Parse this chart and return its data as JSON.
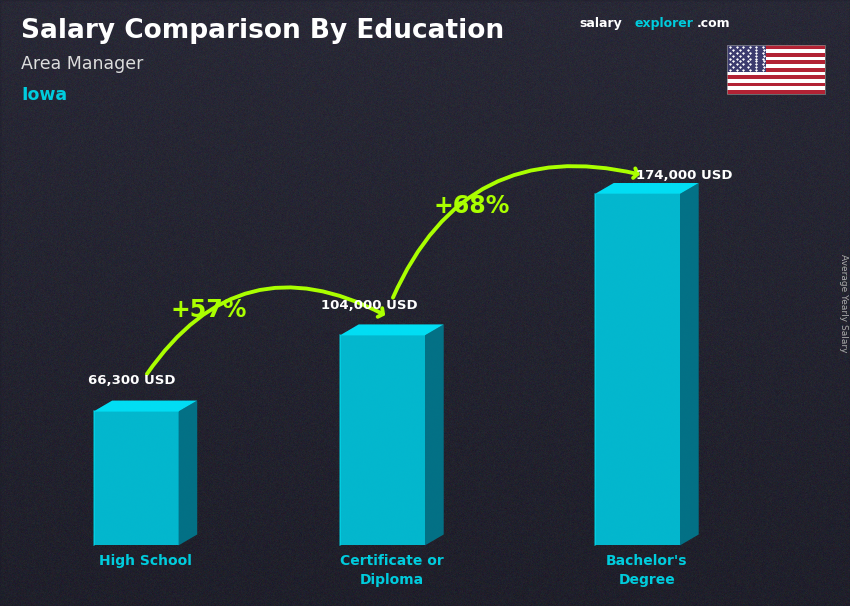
{
  "title": "Salary Comparison By Education",
  "subtitle": "Area Manager",
  "location": "Iowa",
  "side_label": "Average Yearly Salary",
  "categories": [
    "High School",
    "Certificate or\nDiploma",
    "Bachelor's\nDegree"
  ],
  "values": [
    66300,
    104000,
    174000
  ],
  "value_labels": [
    "66,300 USD",
    "104,000 USD",
    "174,000 USD"
  ],
  "pct_labels": [
    "+57%",
    "+68%"
  ],
  "title_color": "#ffffff",
  "subtitle_color": "#dddddd",
  "location_color": "#00ccdd",
  "value_label_color": "#ffffff",
  "pct_color": "#aaff00",
  "arrow_color": "#aaff00",
  "xlabel_color": "#00ccdd",
  "bar_front_color": "#00c8e0",
  "bar_top_color": "#00e8ff",
  "bar_side_color": "#007a90",
  "bg_color": "#3a3a4a",
  "watermark_salary_color": "#ffffff",
  "watermark_explorer_color": "#00ccdd",
  "watermark_com_color": "#ffffff",
  "side_label_color": "#aaaaaa",
  "figsize": [
    8.5,
    6.06
  ],
  "dpi": 100
}
